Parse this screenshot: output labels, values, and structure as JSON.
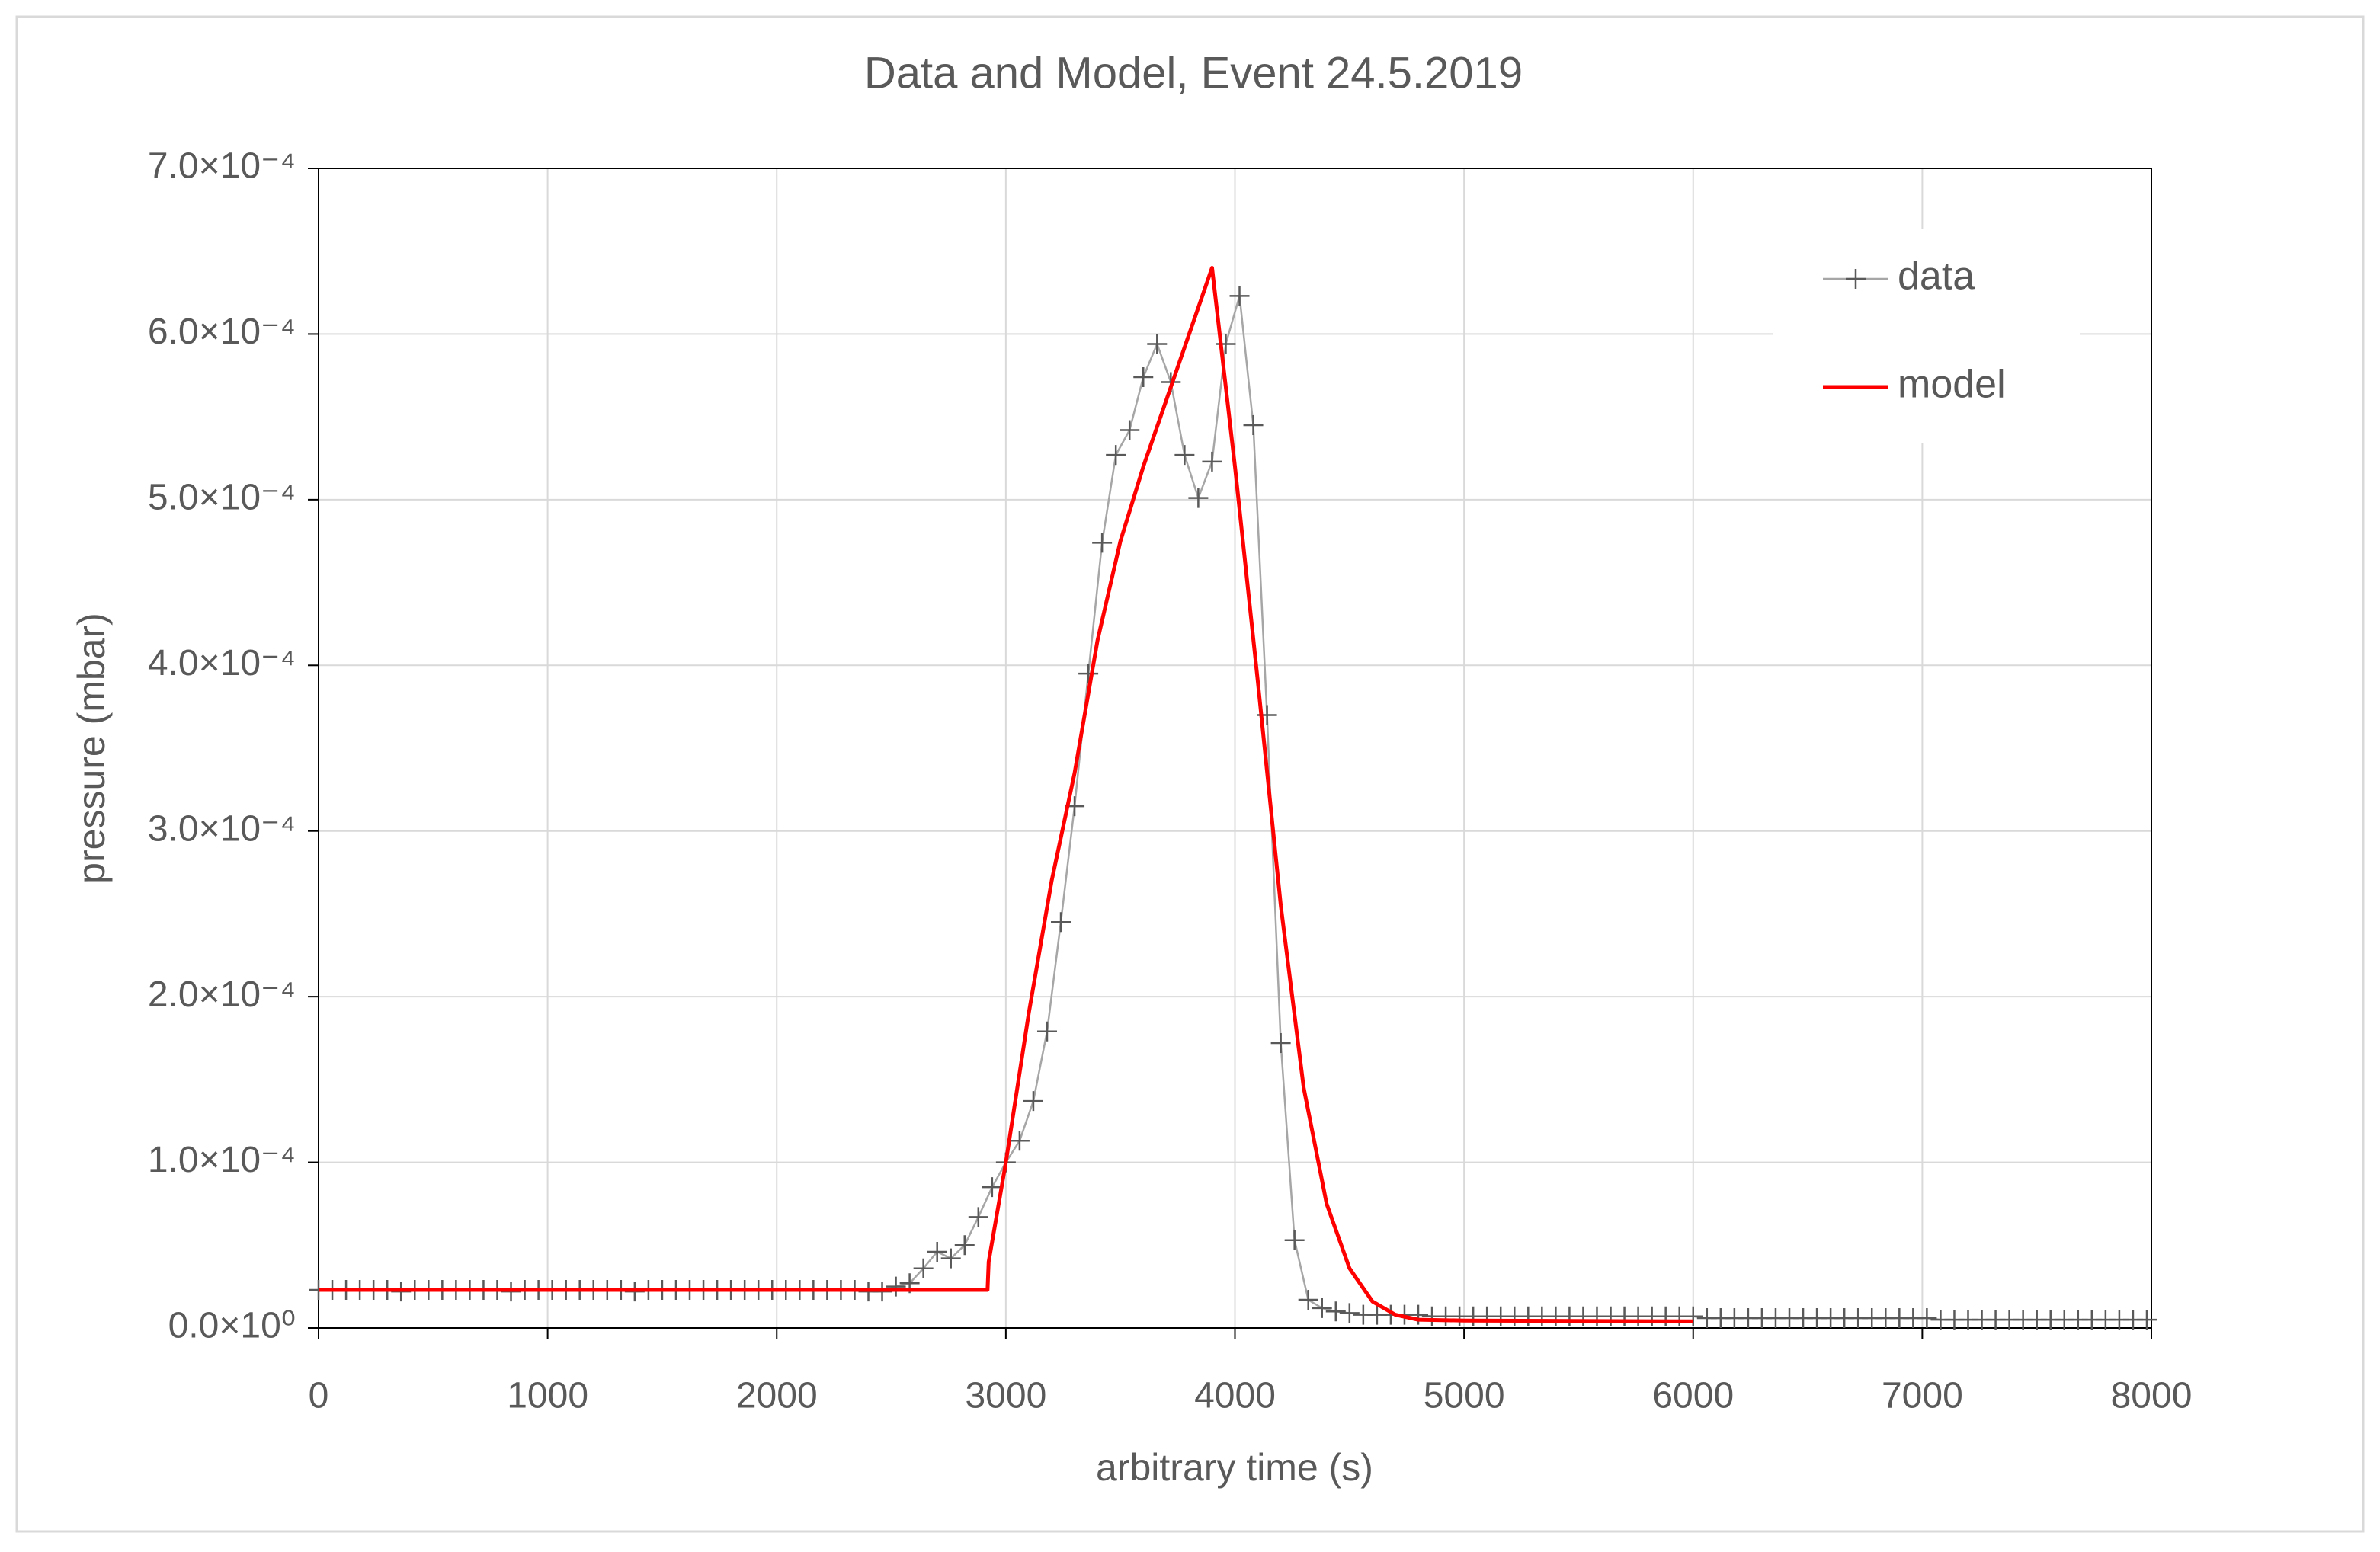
{
  "chart_data": {
    "type": "line",
    "title": "Data and Model, Event 24.5.2019",
    "x_label": "arbitrary time (s)",
    "y_label": "pressure (mbar)",
    "xlim": [
      0,
      8000
    ],
    "xticks": [
      0,
      1000,
      2000,
      3000,
      4000,
      5000,
      6000,
      7000,
      8000
    ],
    "ylim": [
      0,
      0.0007
    ],
    "yticks": [
      {
        "value": 0,
        "label": "0.0×10⁰"
      },
      {
        "value": 0.0001,
        "label": "1.0×10⁻⁴"
      },
      {
        "value": 0.0002,
        "label": "2.0×10⁻⁴"
      },
      {
        "value": 0.0003,
        "label": "3.0×10⁻⁴"
      },
      {
        "value": 0.0004,
        "label": "4.0×10⁻⁴"
      },
      {
        "value": 0.0005,
        "label": "5.0×10⁻⁴"
      },
      {
        "value": 0.0006,
        "label": "6.0×10⁻⁴"
      },
      {
        "value": 0.0007,
        "label": "7.0×10⁻⁴"
      }
    ],
    "grid": true,
    "legend": "top-right",
    "series": [
      {
        "name": "data",
        "color": "#a6a6a6",
        "marker_color": "#595959",
        "marker": "+",
        "x": [
          0,
          60,
          120,
          180,
          240,
          300,
          360,
          420,
          480,
          540,
          600,
          660,
          720,
          780,
          840,
          900,
          960,
          1020,
          1080,
          1140,
          1200,
          1260,
          1320,
          1380,
          1440,
          1500,
          1560,
          1620,
          1680,
          1740,
          1800,
          1860,
          1920,
          1980,
          2040,
          2100,
          2160,
          2220,
          2280,
          2340,
          2400,
          2460,
          2520,
          2580,
          2640,
          2700,
          2760,
          2820,
          2880,
          2940,
          3000,
          3060,
          3120,
          3180,
          3240,
          3300,
          3360,
          3420,
          3480,
          3540,
          3600,
          3660,
          3720,
          3780,
          3840,
          3900,
          3960,
          4020,
          4080,
          4140,
          4200,
          4260,
          4320,
          4380,
          4440,
          4500,
          4560,
          4620,
          4680,
          4740,
          4800,
          4860,
          4920,
          4980,
          5040,
          5100,
          5160,
          5220,
          5280,
          5340,
          5400,
          5460,
          5520,
          5580,
          5640,
          5700,
          5760,
          5820,
          5880,
          5940,
          6000,
          6060,
          6120,
          6180,
          6240,
          6300,
          6360,
          6420,
          6480,
          6540,
          6600,
          6660,
          6720,
          6780,
          6840,
          6900,
          6960,
          7020,
          7080,
          7140,
          7200,
          7260,
          7320,
          7380,
          7440,
          7500,
          7560,
          7620,
          7680,
          7740,
          7800,
          7860,
          7920,
          7980
        ],
        "values": [
          2.3e-05,
          2.3e-05,
          2.3e-05,
          2.3e-05,
          2.3e-05,
          2.3e-05,
          2.2e-05,
          2.3e-05,
          2.3e-05,
          2.3e-05,
          2.3e-05,
          2.3e-05,
          2.3e-05,
          2.3e-05,
          2.2e-05,
          2.3e-05,
          2.3e-05,
          2.3e-05,
          2.3e-05,
          2.3e-05,
          2.3e-05,
          2.3e-05,
          2.3e-05,
          2.2e-05,
          2.3e-05,
          2.3e-05,
          2.3e-05,
          2.3e-05,
          2.3e-05,
          2.3e-05,
          2.3e-05,
          2.3e-05,
          2.3e-05,
          2.3e-05,
          2.3e-05,
          2.3e-05,
          2.3e-05,
          2.3e-05,
          2.3e-05,
          2.3e-05,
          2.2e-05,
          2.2e-05,
          2.5e-05,
          2.7e-05,
          3.6e-05,
          4.6e-05,
          4.2e-05,
          5e-05,
          6.7e-05,
          8.5e-05,
          0.0001,
          0.000113,
          0.000137,
          0.000179,
          0.000245,
          0.000315,
          0.000395,
          0.000474,
          0.000527,
          0.000542,
          0.000574,
          0.000594,
          0.000571,
          0.000527,
          0.000501,
          0.000523,
          0.000594,
          0.000623,
          0.000545,
          0.00037,
          0.000172,
          5.3e-05,
          1.7e-05,
          1.2e-05,
          1e-05,
          9e-06,
          8e-06,
          8e-06,
          8e-06,
          8e-06,
          8e-06,
          7e-06,
          7e-06,
          7e-06,
          7e-06,
          7e-06,
          7e-06,
          7e-06,
          7e-06,
          7e-06,
          7e-06,
          7e-06,
          7e-06,
          7e-06,
          7e-06,
          7e-06,
          7e-06,
          7e-06,
          7e-06,
          7e-06,
          7e-06,
          6e-06,
          6e-06,
          6e-06,
          6e-06,
          6e-06,
          6e-06,
          6e-06,
          6e-06,
          6e-06,
          6e-06,
          6e-06,
          6e-06,
          6e-06,
          6e-06,
          6e-06,
          6e-06,
          6e-06,
          5e-06,
          5e-06,
          5e-06,
          5e-06,
          5e-06,
          5e-06,
          5e-06,
          5e-06,
          5e-06,
          5e-06,
          5e-06,
          5e-06,
          5e-06,
          5e-06,
          5e-06,
          5e-06
        ]
      },
      {
        "name": "model",
        "color": "#ff0000",
        "x": [
          0,
          2920,
          2925,
          2950,
          3000,
          3100,
          3200,
          3300,
          3400,
          3500,
          3600,
          3700,
          3800,
          3900,
          4000,
          4100,
          4200,
          4300,
          4400,
          4500,
          4600,
          4700,
          4800,
          5000,
          6000
        ],
        "values": [
          2.3e-05,
          2.3e-05,
          4e-05,
          6e-05,
          0.0001,
          0.00019,
          0.00027,
          0.000335,
          0.000415,
          0.000475,
          0.00052,
          0.00056,
          0.0006,
          0.00064,
          0.00052,
          0.00039,
          0.000255,
          0.000145,
          7.5e-05,
          3.6e-05,
          1.6e-05,
          8e-06,
          5e-06,
          4.5e-06,
          4e-06
        ]
      }
    ]
  }
}
